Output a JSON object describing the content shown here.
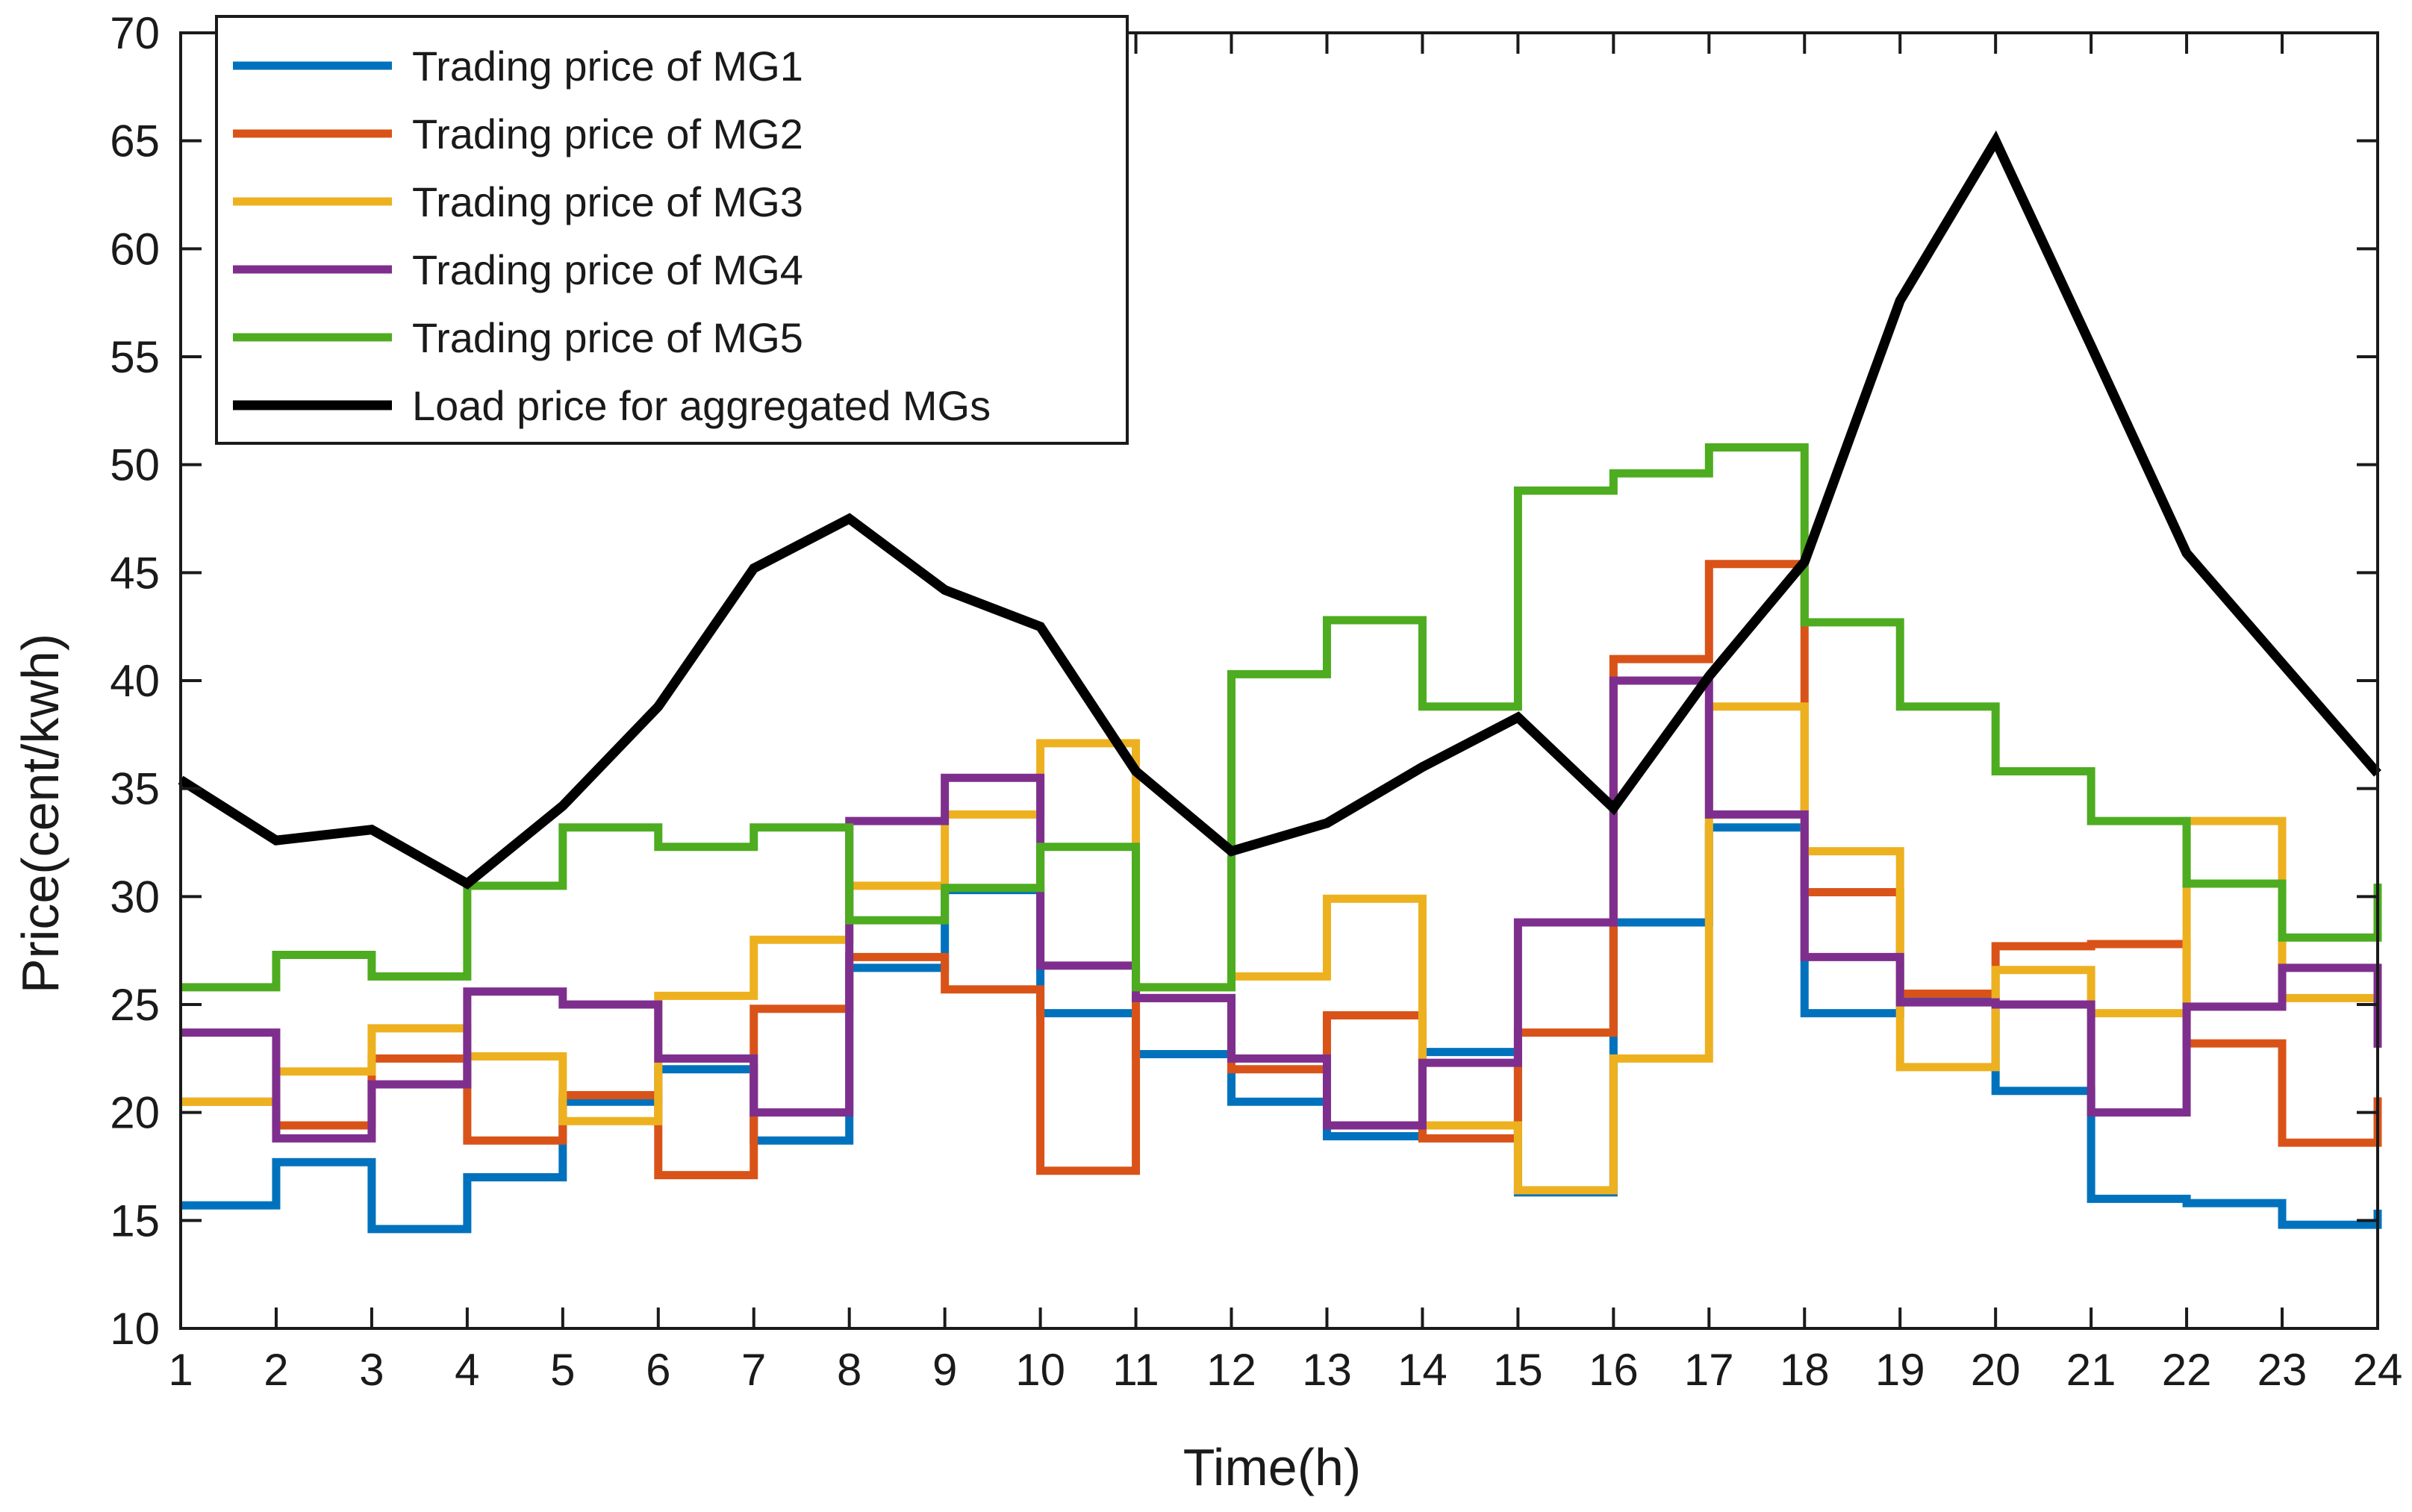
{
  "chart_data": {
    "type": "line",
    "title": "",
    "xlabel": "Time(h)",
    "ylabel": "Price(cent/kwh)",
    "xlim": [
      1,
      24
    ],
    "ylim": [
      10,
      70
    ],
    "xticks": [
      1,
      2,
      3,
      4,
      5,
      6,
      7,
      8,
      9,
      10,
      11,
      12,
      13,
      14,
      15,
      16,
      17,
      18,
      19,
      20,
      21,
      22,
      23,
      24
    ],
    "yticks": [
      10,
      15,
      20,
      25,
      30,
      35,
      40,
      45,
      50,
      55,
      60,
      65,
      70
    ],
    "legend_position": "top-left",
    "x": [
      1,
      2,
      3,
      4,
      5,
      6,
      7,
      8,
      9,
      10,
      11,
      12,
      13,
      14,
      15,
      16,
      17,
      18,
      19,
      20,
      21,
      22,
      23,
      24
    ],
    "series": [
      {
        "name": "Trading price of MG1",
        "style": "step",
        "color": "#0072BD",
        "values": [
          15.7,
          17.7,
          14.6,
          17.0,
          20.5,
          22.0,
          18.7,
          26.7,
          30.3,
          24.6,
          22.7,
          20.5,
          18.9,
          22.8,
          16.3,
          28.8,
          33.2,
          24.6,
          25.2,
          21.0,
          16.0,
          15.8,
          14.8,
          15.5
        ]
      },
      {
        "name": "Trading price of MG2",
        "style": "step",
        "color": "#D95319",
        "values": [
          20.5,
          19.4,
          22.5,
          18.7,
          20.8,
          17.1,
          24.8,
          27.2,
          25.7,
          17.3,
          25.3,
          22.0,
          24.5,
          18.8,
          23.7,
          41.0,
          45.4,
          30.2,
          25.5,
          27.7,
          27.8,
          23.2,
          18.6,
          20.7
        ]
      },
      {
        "name": "Trading price of MG3",
        "style": "step",
        "color": "#EDB120",
        "values": [
          20.5,
          21.9,
          23.9,
          22.6,
          19.6,
          25.4,
          28.0,
          30.5,
          33.8,
          37.1,
          25.8,
          26.3,
          29.9,
          19.4,
          16.4,
          22.5,
          38.8,
          32.1,
          22.1,
          26.6,
          24.6,
          33.5,
          25.3,
          25.3
        ]
      },
      {
        "name": "Trading price of MG4",
        "style": "step",
        "color": "#7E2F8E",
        "values": [
          23.7,
          18.8,
          21.3,
          25.6,
          25.0,
          22.5,
          20.0,
          33.5,
          35.5,
          26.8,
          25.3,
          22.5,
          19.4,
          22.3,
          28.8,
          40.0,
          33.8,
          27.2,
          25.1,
          25.0,
          20.0,
          24.9,
          26.7,
          23.0
        ]
      },
      {
        "name": "Trading price of MG5",
        "style": "step",
        "color": "#4DAC1F",
        "values": [
          25.8,
          27.3,
          26.3,
          30.5,
          33.2,
          32.3,
          33.2,
          28.9,
          30.4,
          32.3,
          25.8,
          40.3,
          42.8,
          38.8,
          48.8,
          49.6,
          50.8,
          42.7,
          38.8,
          35.8,
          33.5,
          30.6,
          28.1,
          30.6
        ]
      },
      {
        "name": "Load price for aggregated MGs",
        "style": "line",
        "color": "#000000",
        "values": [
          35.4,
          32.6,
          33.1,
          30.6,
          34.2,
          38.8,
          45.2,
          47.5,
          44.2,
          42.5,
          35.8,
          32.1,
          33.4,
          36.0,
          38.3,
          34.1,
          40.2,
          45.5,
          57.6,
          65.0,
          55.5,
          45.9,
          40.8,
          35.7
        ]
      }
    ]
  }
}
